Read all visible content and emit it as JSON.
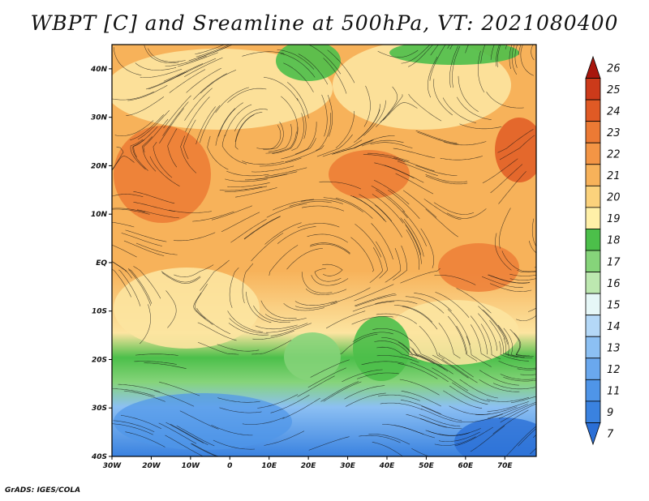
{
  "title": "WBPT [C] and Sreamline at 500hPa, VT: 2021080400",
  "credit": "GrADS: IGES/COLA",
  "map": {
    "lon_range": [
      -30,
      78
    ],
    "lat_range": [
      -40,
      45
    ],
    "lon_ticks": [
      "30W",
      "20W",
      "10W",
      "0",
      "10E",
      "20E",
      "30E",
      "40E",
      "50E",
      "60E",
      "70E"
    ],
    "lat_ticks": [
      "40S",
      "30S",
      "20S",
      "10S",
      "EQ",
      "10N",
      "20N",
      "30N",
      "40N"
    ]
  },
  "colorbar": {
    "labels": [
      "7",
      "9",
      "11",
      "12",
      "13",
      "14",
      "15",
      "16",
      "17",
      "18",
      "19",
      "20",
      "21",
      "22",
      "23",
      "24",
      "25",
      "26"
    ],
    "colors": [
      "#2b6fd6",
      "#3a82e0",
      "#4f95e8",
      "#6aa8ee",
      "#8cc0f3",
      "#b4d8f7",
      "#e6f7f7",
      "#bde8b0",
      "#86d47a",
      "#4cbf4a",
      "#fff0a8",
      "#fbd27c",
      "#f7b25a",
      "#f39545",
      "#ec7a34",
      "#e05a25",
      "#cc3a1a",
      "#a8160d"
    ]
  }
}
